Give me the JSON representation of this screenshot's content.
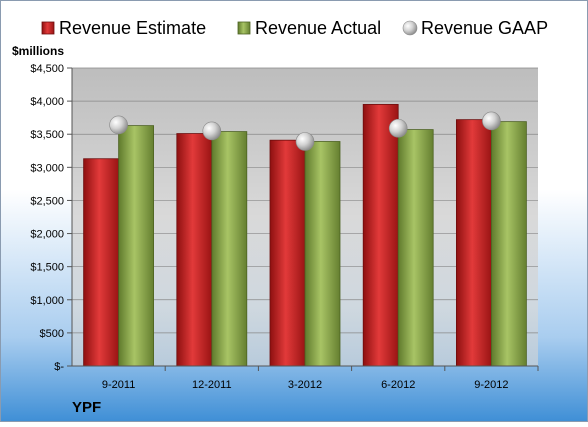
{
  "chart_data": {
    "type": "bar",
    "company": "YPF",
    "ylabel": "$millions",
    "categories": [
      "9-2011",
      "12-2011",
      "3-2012",
      "6-2012",
      "9-2012"
    ],
    "series": [
      {
        "name": "Revenue Estimate",
        "kind": "bar",
        "color": "#cc2222",
        "values": [
          3130,
          3510,
          3410,
          3950,
          3720
        ]
      },
      {
        "name": "Revenue Actual",
        "kind": "bar",
        "color": "#8faa4c",
        "values": [
          3630,
          3540,
          3390,
          3570,
          3690
        ]
      },
      {
        "name": "Revenue GAAP",
        "kind": "marker",
        "color": "#bfbfbf",
        "values": [
          3640,
          3550,
          3390,
          3590,
          3700
        ]
      }
    ],
    "ylim": [
      0,
      4500
    ],
    "yticks": [
      0,
      500,
      1000,
      1500,
      2000,
      2500,
      3000,
      3500,
      4000,
      4500
    ],
    "ytick_labels": [
      "$-",
      "$500",
      "$1,000",
      "$1,500",
      "$2,000",
      "$2,500",
      "$3,000",
      "$3,500",
      "$4,000",
      "$4,500"
    ],
    "grid": true,
    "legend_position": "top"
  }
}
